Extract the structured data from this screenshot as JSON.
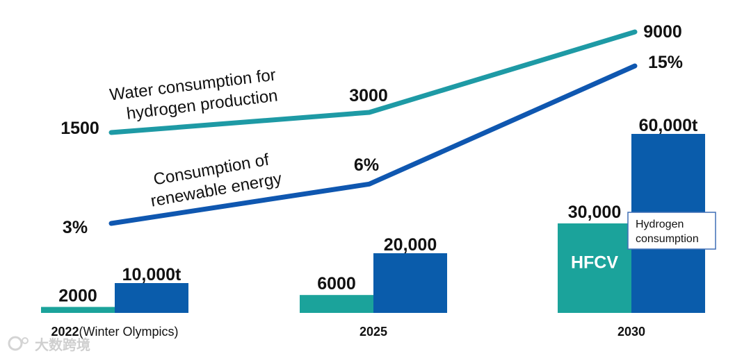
{
  "chart_data": {
    "type": "bar",
    "categories": [
      "2022",
      "2025",
      "2030"
    ],
    "category_labels": [
      "2022",
      "2025",
      "2030"
    ],
    "category_note": "(Winter Olympics)",
    "series": [
      {
        "name": "HFCV",
        "values": [
          2000,
          6000,
          30000
        ],
        "labels": [
          "2000",
          "6000",
          "30,000"
        ],
        "color": "#1BA39B"
      },
      {
        "name": "Hydrogen consumption",
        "values": [
          10000,
          20000,
          60000
        ],
        "labels": [
          "10,000t",
          "20,000",
          "60,000t"
        ],
        "color": "#0A5CAB"
      }
    ],
    "lines": [
      {
        "name": "Water consumption for hydrogen production",
        "values": [
          1500,
          3000,
          9000
        ],
        "labels": [
          "1500",
          "3000",
          "9000"
        ],
        "color": "#1E9AA5",
        "label_lines": [
          "Water consumption for",
          "hydrogen production"
        ]
      },
      {
        "name": "Consumption of renewable energy",
        "values": [
          3,
          6,
          15
        ],
        "labels": [
          "3%",
          "6%",
          "15%"
        ],
        "color": "#0F57B0",
        "label_lines": [
          "Consumption of",
          "renewable energy"
        ]
      }
    ],
    "legend": {
      "bar_inner_label": "HFCV",
      "box_label_lines": [
        "Hydrogen",
        "consumption"
      ],
      "box_position": "right of 2030 bars"
    },
    "xlabel": "",
    "ylabel": "",
    "ylim": [
      0,
      60000
    ]
  },
  "colors": {
    "teal": "#1BA39B",
    "blue": "#0A5CAB",
    "water_line": "#1E9AA5",
    "renew_line": "#0F57B0"
  },
  "watermark": "大数跨境"
}
